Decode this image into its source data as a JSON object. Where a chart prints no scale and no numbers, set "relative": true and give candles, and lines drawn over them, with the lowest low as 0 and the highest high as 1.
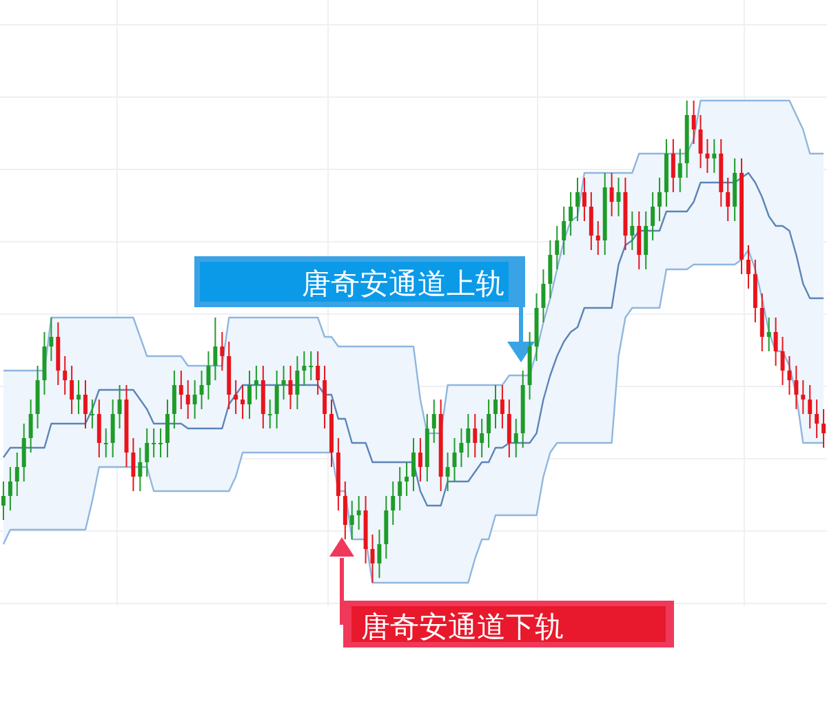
{
  "chart_data": {
    "type": "candlestick",
    "relative": true,
    "grid": true,
    "categories": [
      null,
      null,
      null,
      null,
      null,
      null,
      null,
      null,
      null,
      null,
      null,
      null,
      null,
      null,
      null,
      null,
      null,
      null,
      null,
      null,
      null,
      null,
      null,
      null,
      null,
      null,
      null,
      null,
      null,
      null,
      null,
      null,
      null,
      null,
      null,
      null,
      null,
      null,
      null,
      null,
      null,
      null,
      null,
      null,
      null,
      null,
      null,
      null,
      null,
      null,
      null,
      null,
      null,
      null,
      null,
      null,
      null,
      null,
      null,
      null,
      null,
      null,
      null,
      null,
      null,
      null,
      null,
      null,
      null,
      null,
      null,
      null,
      null,
      null,
      null,
      null,
      null,
      null,
      null,
      null,
      null,
      null,
      null,
      null,
      null,
      null,
      null,
      null,
      null,
      null,
      null,
      null,
      null,
      null,
      null,
      null,
      null,
      null,
      null,
      null,
      null,
      null,
      null,
      null,
      null,
      null,
      null,
      null,
      null,
      null,
      null,
      null,
      null,
      null,
      null,
      null,
      null,
      null,
      null,
      null,
      null
    ],
    "ohlc": [
      [
        0.16,
        0.21,
        0.13,
        0.18
      ],
      [
        0.18,
        0.24,
        0.15,
        0.21
      ],
      [
        0.21,
        0.27,
        0.18,
        0.24
      ],
      [
        0.24,
        0.33,
        0.21,
        0.3
      ],
      [
        0.3,
        0.38,
        0.27,
        0.35
      ],
      [
        0.35,
        0.45,
        0.32,
        0.42
      ],
      [
        0.42,
        0.52,
        0.39,
        0.49
      ],
      [
        0.49,
        0.55,
        0.46,
        0.51
      ],
      [
        0.51,
        0.54,
        0.41,
        0.44
      ],
      [
        0.44,
        0.47,
        0.39,
        0.42
      ],
      [
        0.42,
        0.45,
        0.35,
        0.38
      ],
      [
        0.38,
        0.42,
        0.35,
        0.39
      ],
      [
        0.39,
        0.42,
        0.32,
        0.35
      ],
      [
        0.35,
        0.38,
        0.32,
        0.35
      ],
      [
        0.35,
        0.38,
        0.26,
        0.29
      ],
      [
        0.29,
        0.32,
        0.26,
        0.29
      ],
      [
        0.29,
        0.38,
        0.26,
        0.35
      ],
      [
        0.35,
        0.41,
        0.32,
        0.38
      ],
      [
        0.38,
        0.41,
        0.24,
        0.27
      ],
      [
        0.27,
        0.3,
        0.19,
        0.22
      ],
      [
        0.22,
        0.28,
        0.19,
        0.25
      ],
      [
        0.25,
        0.32,
        0.22,
        0.29
      ],
      [
        0.29,
        0.32,
        0.26,
        0.29
      ],
      [
        0.29,
        0.32,
        0.26,
        0.29
      ],
      [
        0.29,
        0.38,
        0.26,
        0.35
      ],
      [
        0.35,
        0.44,
        0.32,
        0.41
      ],
      [
        0.41,
        0.44,
        0.36,
        0.39
      ],
      [
        0.39,
        0.42,
        0.34,
        0.37
      ],
      [
        0.37,
        0.42,
        0.34,
        0.39
      ],
      [
        0.39,
        0.44,
        0.36,
        0.41
      ],
      [
        0.41,
        0.48,
        0.38,
        0.45
      ],
      [
        0.45,
        0.55,
        0.42,
        0.49
      ],
      [
        0.49,
        0.52,
        0.44,
        0.47
      ],
      [
        0.47,
        0.5,
        0.36,
        0.39
      ],
      [
        0.39,
        0.42,
        0.35,
        0.38
      ],
      [
        0.38,
        0.41,
        0.34,
        0.37
      ],
      [
        0.37,
        0.44,
        0.34,
        0.41
      ],
      [
        0.41,
        0.45,
        0.38,
        0.42
      ],
      [
        0.42,
        0.45,
        0.32,
        0.35
      ],
      [
        0.35,
        0.38,
        0.32,
        0.35
      ],
      [
        0.35,
        0.44,
        0.32,
        0.41
      ],
      [
        0.41,
        0.45,
        0.38,
        0.42
      ],
      [
        0.42,
        0.45,
        0.36,
        0.39
      ],
      [
        0.39,
        0.47,
        0.36,
        0.44
      ],
      [
        0.44,
        0.48,
        0.41,
        0.45
      ],
      [
        0.45,
        0.48,
        0.42,
        0.45
      ],
      [
        0.45,
        0.48,
        0.39,
        0.42
      ],
      [
        0.42,
        0.45,
        0.32,
        0.35
      ],
      [
        0.35,
        0.38,
        0.24,
        0.27
      ],
      [
        0.27,
        0.3,
        0.15,
        0.18
      ],
      [
        0.18,
        0.21,
        0.09,
        0.12
      ],
      [
        0.12,
        0.17,
        0.09,
        0.14
      ],
      [
        0.14,
        0.18,
        0.11,
        0.15
      ],
      [
        0.15,
        0.18,
        0.04,
        0.07
      ],
      [
        0.07,
        0.1,
        0.0,
        0.04
      ],
      [
        0.04,
        0.11,
        0.01,
        0.08
      ],
      [
        0.08,
        0.18,
        0.05,
        0.15
      ],
      [
        0.15,
        0.21,
        0.12,
        0.18
      ],
      [
        0.18,
        0.24,
        0.15,
        0.21
      ],
      [
        0.21,
        0.25,
        0.18,
        0.22
      ],
      [
        0.22,
        0.3,
        0.19,
        0.27
      ],
      [
        0.27,
        0.3,
        0.21,
        0.24
      ],
      [
        0.24,
        0.35,
        0.21,
        0.32
      ],
      [
        0.32,
        0.38,
        0.29,
        0.35
      ],
      [
        0.35,
        0.38,
        0.19,
        0.22
      ],
      [
        0.22,
        0.27,
        0.19,
        0.24
      ],
      [
        0.24,
        0.3,
        0.21,
        0.27
      ],
      [
        0.27,
        0.32,
        0.24,
        0.29
      ],
      [
        0.29,
        0.35,
        0.26,
        0.32
      ],
      [
        0.32,
        0.35,
        0.26,
        0.29
      ],
      [
        0.29,
        0.34,
        0.26,
        0.31
      ],
      [
        0.31,
        0.38,
        0.28,
        0.35
      ],
      [
        0.35,
        0.41,
        0.32,
        0.38
      ],
      [
        0.38,
        0.41,
        0.32,
        0.35
      ],
      [
        0.35,
        0.38,
        0.26,
        0.29
      ],
      [
        0.29,
        0.34,
        0.26,
        0.31
      ],
      [
        0.31,
        0.44,
        0.28,
        0.41
      ],
      [
        0.41,
        0.52,
        0.38,
        0.49
      ],
      [
        0.49,
        0.6,
        0.46,
        0.57
      ],
      [
        0.57,
        0.65,
        0.54,
        0.62
      ],
      [
        0.62,
        0.71,
        0.59,
        0.68
      ],
      [
        0.68,
        0.74,
        0.65,
        0.71
      ],
      [
        0.71,
        0.78,
        0.68,
        0.75
      ],
      [
        0.75,
        0.81,
        0.72,
        0.78
      ],
      [
        0.78,
        0.84,
        0.75,
        0.81
      ],
      [
        0.81,
        0.84,
        0.75,
        0.78
      ],
      [
        0.78,
        0.81,
        0.69,
        0.72
      ],
      [
        0.72,
        0.75,
        0.68,
        0.71
      ],
      [
        0.71,
        0.85,
        0.68,
        0.82
      ],
      [
        0.82,
        0.85,
        0.76,
        0.79
      ],
      [
        0.79,
        0.84,
        0.76,
        0.81
      ],
      [
        0.81,
        0.84,
        0.69,
        0.72
      ],
      [
        0.72,
        0.77,
        0.69,
        0.74
      ],
      [
        0.74,
        0.77,
        0.65,
        0.68
      ],
      [
        0.68,
        0.77,
        0.65,
        0.74
      ],
      [
        0.74,
        0.81,
        0.71,
        0.78
      ],
      [
        0.78,
        0.84,
        0.75,
        0.81
      ],
      [
        0.81,
        0.92,
        0.78,
        0.89
      ],
      [
        0.89,
        0.92,
        0.81,
        0.84
      ],
      [
        0.84,
        0.9,
        0.81,
        0.87
      ],
      [
        0.87,
        1.0,
        0.84,
        0.97
      ],
      [
        0.97,
        1.0,
        0.91,
        0.94
      ],
      [
        0.94,
        0.97,
        0.86,
        0.89
      ],
      [
        0.89,
        0.92,
        0.85,
        0.88
      ],
      [
        0.88,
        0.92,
        0.85,
        0.89
      ],
      [
        0.89,
        0.92,
        0.78,
        0.81
      ],
      [
        0.81,
        0.84,
        0.75,
        0.78
      ],
      [
        0.78,
        0.88,
        0.75,
        0.85
      ],
      [
        0.85,
        0.88,
        0.64,
        0.67
      ],
      [
        0.67,
        0.7,
        0.61,
        0.64
      ],
      [
        0.64,
        0.67,
        0.54,
        0.57
      ],
      [
        0.57,
        0.6,
        0.48,
        0.51
      ],
      [
        0.51,
        0.55,
        0.48,
        0.52
      ],
      [
        0.52,
        0.55,
        0.45,
        0.48
      ],
      [
        0.48,
        0.51,
        0.41,
        0.44
      ],
      [
        0.44,
        0.47,
        0.39,
        0.42
      ],
      [
        0.42,
        0.45,
        0.36,
        0.39
      ],
      [
        0.39,
        0.42,
        0.35,
        0.38
      ],
      [
        0.38,
        0.41,
        0.32,
        0.35
      ],
      [
        0.35,
        0.38,
        0.3,
        0.33
      ],
      [
        0.33,
        0.36,
        0.28,
        0.31
      ]
    ],
    "series": [
      {
        "type": "line",
        "color": "#5b84b8",
        "values": [
          0.26,
          0.28,
          0.28,
          0.28,
          0.28,
          0.28,
          0.28,
          0.33,
          0.33,
          0.33,
          0.33,
          0.33,
          0.33,
          0.36,
          0.4,
          0.4,
          0.4,
          0.4,
          0.4,
          0.4,
          0.38,
          0.36,
          0.33,
          0.33,
          0.33,
          0.33,
          0.33,
          0.32,
          0.32,
          0.32,
          0.32,
          0.32,
          0.32,
          0.37,
          0.39,
          0.41,
          0.41,
          0.41,
          0.41,
          0.41,
          0.41,
          0.41,
          0.41,
          0.41,
          0.41,
          0.41,
          0.41,
          0.39,
          0.39,
          0.34,
          0.34,
          0.29,
          0.29,
          0.29,
          0.25,
          0.25,
          0.25,
          0.25,
          0.25,
          0.25,
          0.25,
          0.19,
          0.16,
          0.16,
          0.16,
          0.21,
          0.21,
          0.21,
          0.21,
          0.23,
          0.25,
          0.25,
          0.28,
          0.28,
          0.29,
          0.29,
          0.29,
          0.29,
          0.31,
          0.38,
          0.43,
          0.47,
          0.5,
          0.52,
          0.53,
          0.57,
          0.57,
          0.57,
          0.57,
          0.57,
          0.66,
          0.7,
          0.71,
          0.73,
          0.73,
          0.73,
          0.73,
          0.77,
          0.77,
          0.77,
          0.77,
          0.79,
          0.83,
          0.83,
          0.83,
          0.83,
          0.83,
          0.83,
          0.84,
          0.85,
          0.83,
          0.8,
          0.76,
          0.74,
          0.74,
          0.73,
          0.68,
          0.62,
          0.59,
          0.59,
          0.59
        ],
        "upper": [
          0.44,
          0.44,
          0.44,
          0.44,
          0.44,
          0.44,
          0.44,
          0.55,
          0.55,
          0.55,
          0.55,
          0.55,
          0.55,
          0.55,
          0.55,
          0.55,
          0.55,
          0.55,
          0.55,
          0.55,
          0.51,
          0.47,
          0.47,
          0.47,
          0.47,
          0.47,
          0.47,
          0.45,
          0.45,
          0.45,
          0.45,
          0.45,
          0.45,
          0.55,
          0.55,
          0.55,
          0.55,
          0.55,
          0.55,
          0.55,
          0.55,
          0.55,
          0.55,
          0.55,
          0.55,
          0.55,
          0.55,
          0.51,
          0.51,
          0.49,
          0.49,
          0.49,
          0.49,
          0.49,
          0.49,
          0.49,
          0.49,
          0.49,
          0.49,
          0.49,
          0.49,
          0.38,
          0.31,
          0.31,
          0.31,
          0.41,
          0.41,
          0.41,
          0.41,
          0.41,
          0.41,
          0.41,
          0.41,
          0.41,
          0.43,
          0.43,
          0.43,
          0.43,
          0.48,
          0.54,
          0.59,
          0.65,
          0.71,
          0.75,
          0.76,
          0.85,
          0.85,
          0.85,
          0.85,
          0.85,
          0.85,
          0.85,
          0.85,
          0.89,
          0.89,
          0.89,
          0.89,
          0.89,
          0.89,
          0.89,
          0.89,
          0.92,
          1.0,
          1.0,
          1.0,
          1.0,
          1.0,
          1.0,
          1.0,
          1.0,
          1.0,
          1.0,
          1.0,
          1.0,
          1.0,
          1.0,
          0.97,
          0.94,
          0.89,
          0.89,
          0.89
        ],
        "lower": [
          0.08,
          0.11,
          0.11,
          0.11,
          0.11,
          0.11,
          0.11,
          0.11,
          0.11,
          0.11,
          0.11,
          0.11,
          0.11,
          0.17,
          0.24,
          0.24,
          0.24,
          0.24,
          0.24,
          0.24,
          0.24,
          0.24,
          0.19,
          0.19,
          0.19,
          0.19,
          0.19,
          0.19,
          0.19,
          0.19,
          0.19,
          0.19,
          0.19,
          0.19,
          0.22,
          0.27,
          0.27,
          0.27,
          0.27,
          0.27,
          0.27,
          0.27,
          0.27,
          0.27,
          0.27,
          0.27,
          0.27,
          0.27,
          0.27,
          0.19,
          0.19,
          0.09,
          0.09,
          0.09,
          0.0,
          0.0,
          0.0,
          0.0,
          0.0,
          0.0,
          0.0,
          0.0,
          0.0,
          0.0,
          0.0,
          0.0,
          0.0,
          0.0,
          0.0,
          0.05,
          0.09,
          0.09,
          0.14,
          0.14,
          0.14,
          0.14,
          0.14,
          0.14,
          0.14,
          0.22,
          0.27,
          0.29,
          0.29,
          0.29,
          0.29,
          0.29,
          0.29,
          0.29,
          0.29,
          0.29,
          0.47,
          0.55,
          0.57,
          0.57,
          0.57,
          0.57,
          0.57,
          0.65,
          0.65,
          0.65,
          0.65,
          0.66,
          0.66,
          0.66,
          0.66,
          0.66,
          0.66,
          0.66,
          0.67,
          0.69,
          0.65,
          0.59,
          0.52,
          0.48,
          0.48,
          0.45,
          0.39,
          0.29,
          0.29,
          0.29,
          0.29
        ]
      },
      {
        "type": "line",
        "color": "#8fb6df",
        "values": [
          0.44,
          0.44,
          0.44,
          0.44,
          0.44,
          0.44,
          0.44,
          0.55,
          0.55,
          0.55,
          0.55,
          0.55,
          0.55,
          0.55,
          0.55,
          0.55,
          0.55,
          0.55,
          0.55,
          0.55,
          0.51,
          0.47,
          0.47,
          0.47,
          0.47,
          0.47,
          0.47,
          0.45,
          0.45,
          0.45,
          0.45,
          0.45,
          0.45,
          0.55,
          0.55,
          0.55,
          0.55,
          0.55,
          0.55,
          0.55,
          0.55,
          0.55,
          0.55,
          0.55,
          0.55,
          0.55,
          0.55,
          0.51,
          0.51,
          0.49,
          0.49,
          0.49,
          0.49,
          0.49,
          0.49,
          0.49,
          0.49,
          0.49,
          0.49,
          0.49,
          0.49,
          0.38,
          0.31,
          0.31,
          0.31,
          0.41,
          0.41,
          0.41,
          0.41,
          0.41,
          0.41,
          0.41,
          0.41,
          0.41,
          0.43,
          0.43,
          0.43,
          0.43,
          0.48,
          0.54,
          0.59,
          0.65,
          0.71,
          0.75,
          0.76,
          0.85,
          0.85,
          0.85,
          0.85,
          0.85,
          0.85,
          0.85,
          0.85,
          0.89,
          0.89,
          0.89,
          0.89,
          0.89,
          0.89,
          0.89,
          0.89,
          0.92,
          1.0,
          1.0,
          1.0,
          1.0,
          1.0,
          1.0,
          1.0,
          1.0,
          1.0,
          1.0,
          1.0,
          1.0,
          1.0,
          1.0,
          0.97,
          0.94,
          0.89,
          0.89,
          0.89
        ]
      },
      {
        "type": "line",
        "color": "#8fb6df",
        "values": [
          0.08,
          0.11,
          0.11,
          0.11,
          0.11,
          0.11,
          0.11,
          0.11,
          0.11,
          0.11,
          0.11,
          0.11,
          0.11,
          0.17,
          0.24,
          0.24,
          0.24,
          0.24,
          0.24,
          0.24,
          0.24,
          0.24,
          0.19,
          0.19,
          0.19,
          0.19,
          0.19,
          0.19,
          0.19,
          0.19,
          0.19,
          0.19,
          0.19,
          0.19,
          0.22,
          0.27,
          0.27,
          0.27,
          0.27,
          0.27,
          0.27,
          0.27,
          0.27,
          0.27,
          0.27,
          0.27,
          0.27,
          0.27,
          0.27,
          0.19,
          0.19,
          0.09,
          0.09,
          0.09,
          0.0,
          0.0,
          0.0,
          0.0,
          0.0,
          0.0,
          0.0,
          0.0,
          0.0,
          0.0,
          0.0,
          0.0,
          0.0,
          0.0,
          0.0,
          0.05,
          0.09,
          0.09,
          0.14,
          0.14,
          0.14,
          0.14,
          0.14,
          0.14,
          0.14,
          0.22,
          0.27,
          0.29,
          0.29,
          0.29,
          0.29,
          0.29,
          0.29,
          0.29,
          0.29,
          0.29,
          0.47,
          0.55,
          0.57,
          0.57,
          0.57,
          0.57,
          0.57,
          0.65,
          0.65,
          0.65,
          0.65,
          0.66,
          0.66,
          0.66,
          0.66,
          0.66,
          0.66,
          0.66,
          0.67,
          0.69,
          0.65,
          0.59,
          0.52,
          0.48,
          0.48,
          0.45,
          0.39,
          0.29,
          0.29,
          0.29,
          0.29
        ]
      }
    ],
    "annotations": [
      "唐奇安通道上轨",
      "唐奇安通道下轨"
    ]
  }
}
